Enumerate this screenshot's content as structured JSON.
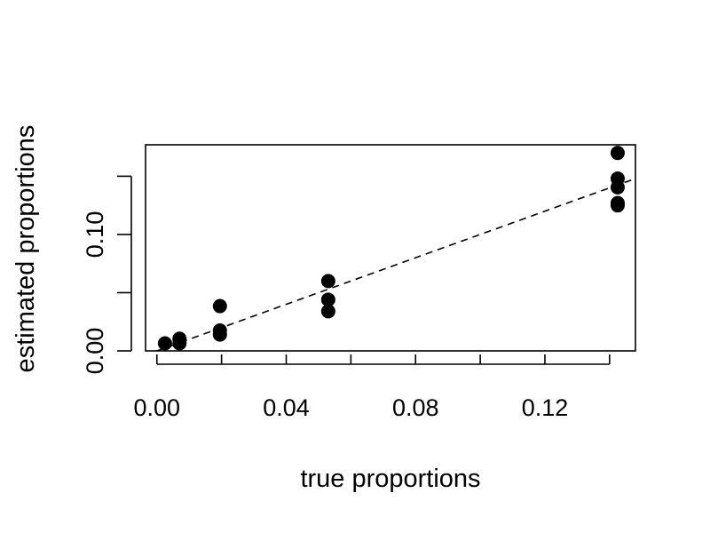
{
  "chart_data": {
    "type": "scatter",
    "title": "",
    "xlabel": "true proportions",
    "ylabel": "estimated proportions",
    "xlim": [
      -0.0035,
      0.148
    ],
    "ylim": [
      0.0,
      0.177
    ],
    "x_ticks": [
      0.0,
      0.02,
      0.04,
      0.06,
      0.08,
      0.1,
      0.12,
      0.14
    ],
    "x_tick_labels": [
      "0.00",
      "",
      "0.04",
      "",
      "0.08",
      "",
      "0.12",
      ""
    ],
    "y_ticks": [
      0.0,
      0.05,
      0.1,
      0.15
    ],
    "y_tick_labels": [
      "0.00",
      "",
      "0.10",
      ""
    ],
    "grid": false,
    "reference_line": {
      "style": "dashed",
      "slope": 1,
      "intercept": 0
    },
    "series": [
      {
        "points": [
          {
            "x": 0.0025,
            "y": 0.0065
          },
          {
            "x": 0.007,
            "y": 0.0065
          },
          {
            "x": 0.007,
            "y": 0.0105
          },
          {
            "x": 0.0195,
            "y": 0.014
          },
          {
            "x": 0.0195,
            "y": 0.0175
          },
          {
            "x": 0.0195,
            "y": 0.0385
          },
          {
            "x": 0.053,
            "y": 0.034
          },
          {
            "x": 0.053,
            "y": 0.044
          },
          {
            "x": 0.053,
            "y": 0.06
          },
          {
            "x": 0.1425,
            "y": 0.125
          },
          {
            "x": 0.1425,
            "y": 0.127
          },
          {
            "x": 0.1425,
            "y": 0.1405
          },
          {
            "x": 0.1425,
            "y": 0.148
          },
          {
            "x": 0.1425,
            "y": 0.17
          }
        ]
      }
    ]
  }
}
